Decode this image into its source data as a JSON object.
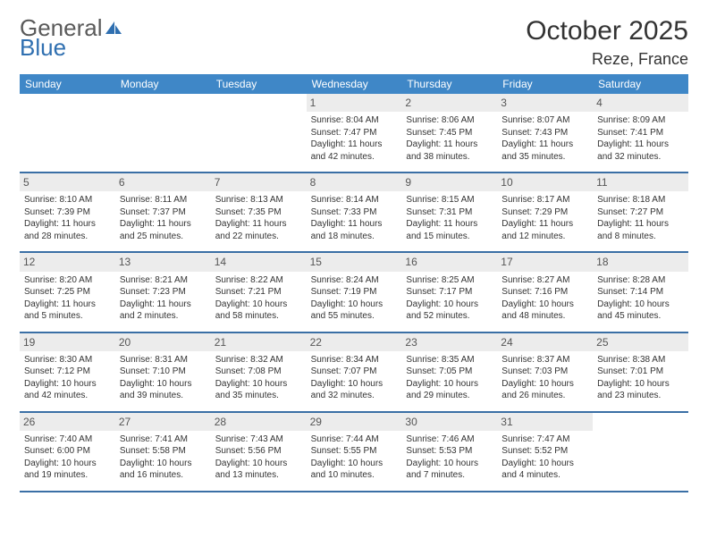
{
  "brand": {
    "word1": "General",
    "word2": "Blue"
  },
  "title": "October 2025",
  "location": "Reze, France",
  "colors": {
    "header_bg": "#3f87c7",
    "header_text": "#ffffff",
    "week_border": "#3a6fa5",
    "daynum_bg": "#ececec",
    "brand_gray": "#5a5a5a",
    "brand_blue": "#2f6fb0",
    "text": "#333333",
    "page_bg": "#ffffff"
  },
  "fonts": {
    "title_pt": 30,
    "location_pt": 18,
    "dayhead_pt": 12,
    "cell_pt": 10,
    "daynum_pt": 12
  },
  "day_names": [
    "Sunday",
    "Monday",
    "Tuesday",
    "Wednesday",
    "Thursday",
    "Friday",
    "Saturday"
  ],
  "weeks": [
    [
      {
        "empty": true
      },
      {
        "empty": true
      },
      {
        "empty": true
      },
      {
        "day": "1",
        "sunrise": "Sunrise: 8:04 AM",
        "sunset": "Sunset: 7:47 PM",
        "dl1": "Daylight: 11 hours",
        "dl2": "and 42 minutes."
      },
      {
        "day": "2",
        "sunrise": "Sunrise: 8:06 AM",
        "sunset": "Sunset: 7:45 PM",
        "dl1": "Daylight: 11 hours",
        "dl2": "and 38 minutes."
      },
      {
        "day": "3",
        "sunrise": "Sunrise: 8:07 AM",
        "sunset": "Sunset: 7:43 PM",
        "dl1": "Daylight: 11 hours",
        "dl2": "and 35 minutes."
      },
      {
        "day": "4",
        "sunrise": "Sunrise: 8:09 AM",
        "sunset": "Sunset: 7:41 PM",
        "dl1": "Daylight: 11 hours",
        "dl2": "and 32 minutes."
      }
    ],
    [
      {
        "day": "5",
        "sunrise": "Sunrise: 8:10 AM",
        "sunset": "Sunset: 7:39 PM",
        "dl1": "Daylight: 11 hours",
        "dl2": "and 28 minutes."
      },
      {
        "day": "6",
        "sunrise": "Sunrise: 8:11 AM",
        "sunset": "Sunset: 7:37 PM",
        "dl1": "Daylight: 11 hours",
        "dl2": "and 25 minutes."
      },
      {
        "day": "7",
        "sunrise": "Sunrise: 8:13 AM",
        "sunset": "Sunset: 7:35 PM",
        "dl1": "Daylight: 11 hours",
        "dl2": "and 22 minutes."
      },
      {
        "day": "8",
        "sunrise": "Sunrise: 8:14 AM",
        "sunset": "Sunset: 7:33 PM",
        "dl1": "Daylight: 11 hours",
        "dl2": "and 18 minutes."
      },
      {
        "day": "9",
        "sunrise": "Sunrise: 8:15 AM",
        "sunset": "Sunset: 7:31 PM",
        "dl1": "Daylight: 11 hours",
        "dl2": "and 15 minutes."
      },
      {
        "day": "10",
        "sunrise": "Sunrise: 8:17 AM",
        "sunset": "Sunset: 7:29 PM",
        "dl1": "Daylight: 11 hours",
        "dl2": "and 12 minutes."
      },
      {
        "day": "11",
        "sunrise": "Sunrise: 8:18 AM",
        "sunset": "Sunset: 7:27 PM",
        "dl1": "Daylight: 11 hours",
        "dl2": "and 8 minutes."
      }
    ],
    [
      {
        "day": "12",
        "sunrise": "Sunrise: 8:20 AM",
        "sunset": "Sunset: 7:25 PM",
        "dl1": "Daylight: 11 hours",
        "dl2": "and 5 minutes."
      },
      {
        "day": "13",
        "sunrise": "Sunrise: 8:21 AM",
        "sunset": "Sunset: 7:23 PM",
        "dl1": "Daylight: 11 hours",
        "dl2": "and 2 minutes."
      },
      {
        "day": "14",
        "sunrise": "Sunrise: 8:22 AM",
        "sunset": "Sunset: 7:21 PM",
        "dl1": "Daylight: 10 hours",
        "dl2": "and 58 minutes."
      },
      {
        "day": "15",
        "sunrise": "Sunrise: 8:24 AM",
        "sunset": "Sunset: 7:19 PM",
        "dl1": "Daylight: 10 hours",
        "dl2": "and 55 minutes."
      },
      {
        "day": "16",
        "sunrise": "Sunrise: 8:25 AM",
        "sunset": "Sunset: 7:17 PM",
        "dl1": "Daylight: 10 hours",
        "dl2": "and 52 minutes."
      },
      {
        "day": "17",
        "sunrise": "Sunrise: 8:27 AM",
        "sunset": "Sunset: 7:16 PM",
        "dl1": "Daylight: 10 hours",
        "dl2": "and 48 minutes."
      },
      {
        "day": "18",
        "sunrise": "Sunrise: 8:28 AM",
        "sunset": "Sunset: 7:14 PM",
        "dl1": "Daylight: 10 hours",
        "dl2": "and 45 minutes."
      }
    ],
    [
      {
        "day": "19",
        "sunrise": "Sunrise: 8:30 AM",
        "sunset": "Sunset: 7:12 PM",
        "dl1": "Daylight: 10 hours",
        "dl2": "and 42 minutes."
      },
      {
        "day": "20",
        "sunrise": "Sunrise: 8:31 AM",
        "sunset": "Sunset: 7:10 PM",
        "dl1": "Daylight: 10 hours",
        "dl2": "and 39 minutes."
      },
      {
        "day": "21",
        "sunrise": "Sunrise: 8:32 AM",
        "sunset": "Sunset: 7:08 PM",
        "dl1": "Daylight: 10 hours",
        "dl2": "and 35 minutes."
      },
      {
        "day": "22",
        "sunrise": "Sunrise: 8:34 AM",
        "sunset": "Sunset: 7:07 PM",
        "dl1": "Daylight: 10 hours",
        "dl2": "and 32 minutes."
      },
      {
        "day": "23",
        "sunrise": "Sunrise: 8:35 AM",
        "sunset": "Sunset: 7:05 PM",
        "dl1": "Daylight: 10 hours",
        "dl2": "and 29 minutes."
      },
      {
        "day": "24",
        "sunrise": "Sunrise: 8:37 AM",
        "sunset": "Sunset: 7:03 PM",
        "dl1": "Daylight: 10 hours",
        "dl2": "and 26 minutes."
      },
      {
        "day": "25",
        "sunrise": "Sunrise: 8:38 AM",
        "sunset": "Sunset: 7:01 PM",
        "dl1": "Daylight: 10 hours",
        "dl2": "and 23 minutes."
      }
    ],
    [
      {
        "day": "26",
        "sunrise": "Sunrise: 7:40 AM",
        "sunset": "Sunset: 6:00 PM",
        "dl1": "Daylight: 10 hours",
        "dl2": "and 19 minutes."
      },
      {
        "day": "27",
        "sunrise": "Sunrise: 7:41 AM",
        "sunset": "Sunset: 5:58 PM",
        "dl1": "Daylight: 10 hours",
        "dl2": "and 16 minutes."
      },
      {
        "day": "28",
        "sunrise": "Sunrise: 7:43 AM",
        "sunset": "Sunset: 5:56 PM",
        "dl1": "Daylight: 10 hours",
        "dl2": "and 13 minutes."
      },
      {
        "day": "29",
        "sunrise": "Sunrise: 7:44 AM",
        "sunset": "Sunset: 5:55 PM",
        "dl1": "Daylight: 10 hours",
        "dl2": "and 10 minutes."
      },
      {
        "day": "30",
        "sunrise": "Sunrise: 7:46 AM",
        "sunset": "Sunset: 5:53 PM",
        "dl1": "Daylight: 10 hours",
        "dl2": "and 7 minutes."
      },
      {
        "day": "31",
        "sunrise": "Sunrise: 7:47 AM",
        "sunset": "Sunset: 5:52 PM",
        "dl1": "Daylight: 10 hours",
        "dl2": "and 4 minutes."
      },
      {
        "empty": true
      }
    ]
  ]
}
